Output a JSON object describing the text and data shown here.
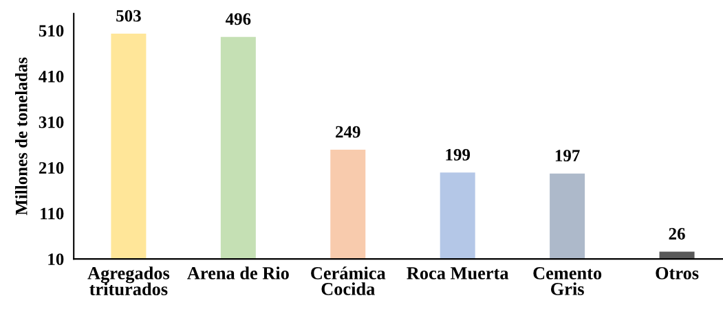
{
  "chart_data": {
    "type": "bar",
    "ylabel": "Millones de toneladas",
    "categories": [
      "Agregados\ntriturados",
      "Arena de Rio",
      "Cerámica\nCocida",
      "Roca Muerta",
      "Cemento\nGris",
      "Otros"
    ],
    "values": [
      503,
      496,
      249,
      199,
      197,
      26
    ],
    "colors": [
      "#ffe699",
      "#c5e0b4",
      "#f8cbad",
      "#b4c7e7",
      "#adb9ca",
      "#595959"
    ],
    "ylim": [
      10,
      547
    ],
    "yticks": [
      10,
      110,
      210,
      310,
      410,
      510
    ],
    "data_labels": true,
    "grid": false
  }
}
